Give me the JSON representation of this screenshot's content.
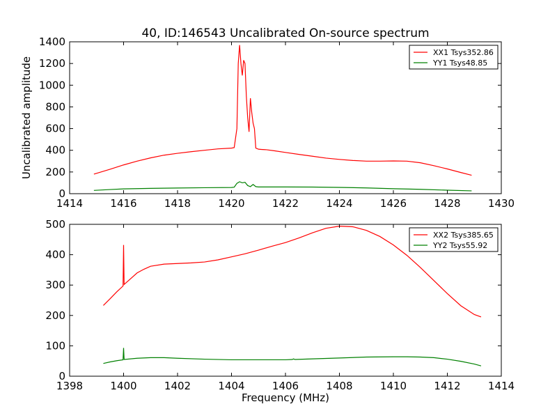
{
  "title": "40, ID:146543 Uncalibrated On-source spectrum",
  "chart_data": [
    {
      "type": "line",
      "title": "40, ID:146543 Uncalibrated On-source spectrum",
      "xlabel": "",
      "ylabel": "Uncalibrated amplitude",
      "xlim": [
        1414,
        1430
      ],
      "ylim": [
        0,
        1400
      ],
      "xticks": [
        1414,
        1416,
        1418,
        1420,
        1422,
        1424,
        1426,
        1428,
        1430
      ],
      "yticks": [
        0,
        200,
        400,
        600,
        800,
        1000,
        1200,
        1400
      ],
      "legend_position": "top-right",
      "series": [
        {
          "name": "XX1 Tsys352.86",
          "color": "#ff0000",
          "x": [
            1414.9,
            1415.5,
            1416.0,
            1416.5,
            1417.0,
            1417.5,
            1418.0,
            1418.5,
            1419.0,
            1419.5,
            1420.0,
            1420.1,
            1420.2,
            1420.25,
            1420.3,
            1420.35,
            1420.4,
            1420.45,
            1420.5,
            1420.55,
            1420.6,
            1420.65,
            1420.7,
            1420.75,
            1420.8,
            1420.85,
            1420.9,
            1421.0,
            1421.1,
            1421.3,
            1421.6,
            1422.0,
            1422.5,
            1423.0,
            1423.5,
            1424.0,
            1424.5,
            1425.0,
            1425.5,
            1426.0,
            1426.5,
            1427.0,
            1427.5,
            1428.0,
            1428.5,
            1428.9
          ],
          "y": [
            180,
            225,
            265,
            300,
            330,
            355,
            372,
            387,
            400,
            413,
            420,
            425,
            600,
            1200,
            1370,
            1200,
            1090,
            1230,
            1200,
            900,
            700,
            570,
            880,
            750,
            650,
            600,
            420,
            410,
            408,
            405,
            395,
            380,
            362,
            345,
            328,
            316,
            306,
            300,
            300,
            302,
            300,
            285,
            258,
            228,
            195,
            170
          ]
        },
        {
          "name": "YY1 Tsys48.85",
          "color": "#008000",
          "x": [
            1414.9,
            1415.5,
            1416.0,
            1417.0,
            1418.0,
            1419.0,
            1420.0,
            1420.1,
            1420.2,
            1420.3,
            1420.4,
            1420.5,
            1420.6,
            1420.7,
            1420.8,
            1420.9,
            1421.0,
            1421.5,
            1422.0,
            1423.0,
            1424.0,
            1425.0,
            1426.0,
            1427.0,
            1428.0,
            1428.9
          ],
          "y": [
            30,
            38,
            44,
            49,
            52,
            55,
            57,
            60,
            95,
            110,
            100,
            105,
            75,
            65,
            85,
            65,
            62,
            62,
            62,
            61,
            58,
            53,
            46,
            40,
            32,
            26
          ]
        }
      ]
    },
    {
      "type": "line",
      "title": "",
      "xlabel": "Frequency (MHz)",
      "ylabel": "",
      "xlim": [
        1398,
        1414
      ],
      "ylim": [
        0,
        500
      ],
      "xticks": [
        1398,
        1400,
        1402,
        1404,
        1406,
        1408,
        1410,
        1412,
        1414
      ],
      "yticks": [
        0,
        100,
        200,
        300,
        400,
        500
      ],
      "legend_position": "top-right",
      "series": [
        {
          "name": "XX2 Tsys385.65",
          "color": "#ff0000",
          "x": [
            1399.25,
            1399.5,
            1399.75,
            1399.98,
            1400.0,
            1400.02,
            1400.25,
            1400.5,
            1400.75,
            1401.0,
            1401.5,
            1402.0,
            1402.5,
            1403.0,
            1403.5,
            1404.0,
            1404.5,
            1405.0,
            1405.5,
            1406.0,
            1406.5,
            1407.0,
            1407.5,
            1408.0,
            1408.5,
            1409.0,
            1409.5,
            1410.0,
            1410.5,
            1411.0,
            1411.5,
            1412.0,
            1412.5,
            1413.0,
            1413.25
          ],
          "y": [
            233,
            255,
            278,
            297,
            432,
            302,
            320,
            340,
            352,
            362,
            369,
            371,
            373,
            376,
            383,
            393,
            403,
            415,
            428,
            440,
            455,
            472,
            487,
            494,
            492,
            480,
            460,
            432,
            398,
            358,
            315,
            272,
            232,
            203,
            195
          ]
        },
        {
          "name": "YY2 Tsys55.92",
          "color": "#008000",
          "x": [
            1399.25,
            1399.5,
            1399.75,
            1399.98,
            1400.0,
            1400.02,
            1400.5,
            1401.0,
            1401.5,
            1402.0,
            1403.0,
            1404.0,
            1405.0,
            1406.0,
            1406.25,
            1406.3,
            1406.35,
            1407.0,
            1408.0,
            1409.0,
            1410.0,
            1410.5,
            1411.0,
            1411.5,
            1412.0,
            1412.5,
            1413.0,
            1413.25
          ],
          "y": [
            42,
            47,
            51,
            54,
            93,
            55,
            59,
            61,
            61,
            59,
            56,
            54,
            54,
            54,
            55,
            57,
            55,
            57,
            60,
            63,
            64,
            64,
            63,
            61,
            56,
            49,
            40,
            34
          ]
        }
      ]
    }
  ]
}
